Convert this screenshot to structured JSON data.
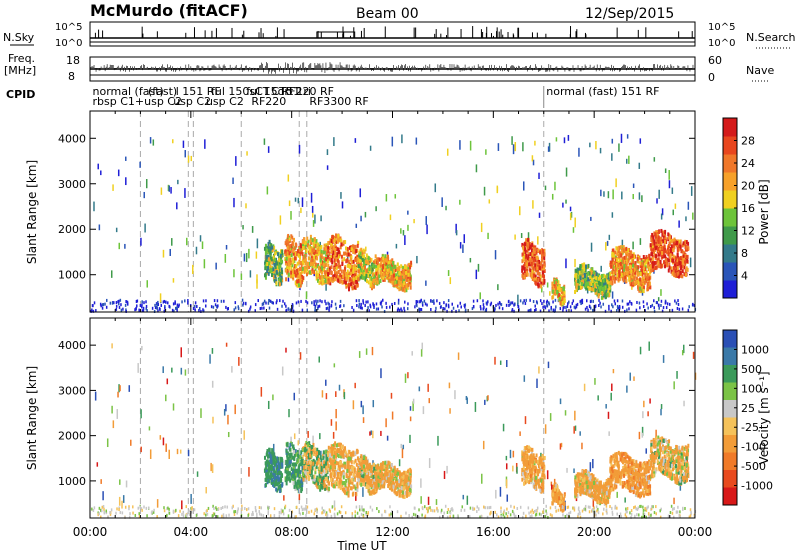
{
  "header": {
    "title": "McMurdo (fitACF)",
    "beam": "Beam 00",
    "date": "12/Sep/2015"
  },
  "top_panels": {
    "nsky_label": "N.Sky",
    "nsky_ticks": [
      "10^5",
      "10^0"
    ],
    "nsearch_label": "N.Search",
    "nsearch_ticks": [
      "10^5",
      "10^0"
    ],
    "freq_label_1": "Freq.",
    "freq_label_2": "[MHz]",
    "freq_ticks": [
      "18",
      "8"
    ],
    "nave_label": "Nave",
    "nave_ticks": [
      "60",
      "0"
    ],
    "cpid_label": "CPID",
    "cpid_texts": [
      {
        "text": "normal (fast) ",
        "row": 1,
        "t": 0.1
      },
      {
        "text": "rbsp C1+usp C2",
        "row": 2,
        "t": 0.1
      },
      {
        "text": "(fast) ",
        "row": 1,
        "t": 2.3
      },
      {
        "text": "usp C2",
        "row": 2,
        "t": 3.3
      },
      {
        "text": "l 151 RF",
        "row": 1,
        "t": 3.4
      },
      {
        "text": "ful 150sCT",
        "row": 1,
        "t": 4.8
      },
      {
        "text": "usp C2",
        "row": 2,
        "t": 4.6
      },
      {
        "text": "RF220 RF",
        "row": 1,
        "t": 7.6
      },
      {
        "text": "ful 15ort1",
        "row": 1,
        "t": 6.2
      },
      {
        "text": "CT5 1ri",
        "row": 1,
        "t": 7.2
      },
      {
        "text": "RF220",
        "row": 2,
        "t": 6.4
      },
      {
        "text": "RF3300 RF",
        "row": 2,
        "t": 8.7
      },
      {
        "text": "normal (fast) 151 RF",
        "row": 1,
        "t": 18.1
      }
    ]
  },
  "panels": [
    {
      "name": "power",
      "ylabel": "Slant Range [km]",
      "cbar_label": "Power [dB]"
    },
    {
      "name": "velocity",
      "ylabel": "Slant Range [km]",
      "cbar_label": "Velocity [m s⁻¹]"
    }
  ],
  "yticks": [
    "1000",
    "2000",
    "3000",
    "4000"
  ],
  "xticks": [
    "00:00",
    "04:00",
    "08:00",
    "12:00",
    "16:00",
    "20:00",
    "00:00"
  ],
  "xlabel": "Time UT",
  "power_colorbar": {
    "labels": [
      "4",
      "8",
      "12",
      "16",
      "20",
      "24",
      "28"
    ],
    "colors": [
      "#1f1fd6",
      "#2a55b8",
      "#337a8a",
      "#3f9a4a",
      "#6dc43a",
      "#f0d020",
      "#f7a12a",
      "#f0772a",
      "#e8461e",
      "#d41a1a"
    ]
  },
  "velocity_colorbar": {
    "labels": [
      "1000",
      "500",
      "100",
      "25",
      "-25",
      "-100",
      "-500",
      "-1000"
    ],
    "colors": [
      "#2a4fb5",
      "#3a79a8",
      "#3b9a5a",
      "#7bc346",
      "#c8c8c8",
      "#f5c25a",
      "#f29c38",
      "#f07a28",
      "#e84a1e",
      "#d81818"
    ]
  },
  "chart_data": {
    "type": "heatmap",
    "x_range_hours": [
      0,
      24
    ],
    "y_range_km": [
      180,
      4600
    ],
    "echo_regions": [
      {
        "t0": 6.9,
        "t1": 7.6,
        "r0": 900,
        "r1": 1650,
        "power": 14,
        "vel": 400
      },
      {
        "t0": 7.7,
        "t1": 8.4,
        "r0": 900,
        "r1": 1800,
        "power": 22,
        "vel": 300
      },
      {
        "t0": 8.4,
        "t1": 9.4,
        "r0": 950,
        "r1": 1800,
        "power": 20,
        "vel": 50
      },
      {
        "t0": 9.4,
        "t1": 10.6,
        "r0": 800,
        "r1": 1800,
        "power": 24,
        "vel": -200
      },
      {
        "t0": 10.6,
        "t1": 11.3,
        "r0": 850,
        "r1": 1500,
        "power": 18,
        "vel": -150
      },
      {
        "t0": 11.3,
        "t1": 12.7,
        "r0": 800,
        "r1": 1350,
        "power": 20,
        "vel": -200
      },
      {
        "t0": 17.1,
        "t1": 18.0,
        "r0": 900,
        "r1": 1700,
        "power": 26,
        "vel": -250
      },
      {
        "t0": 18.3,
        "t1": 18.8,
        "r0": 500,
        "r1": 850,
        "power": 20,
        "vel": -300
      },
      {
        "t0": 19.2,
        "t1": 20.6,
        "r0": 650,
        "r1": 1150,
        "power": 14,
        "vel": -200
      },
      {
        "t0": 20.6,
        "t1": 22.2,
        "r0": 800,
        "r1": 1550,
        "power": 22,
        "vel": -300
      },
      {
        "t0": 22.2,
        "t1": 23.7,
        "r0": 1100,
        "r1": 1900,
        "power": 26,
        "vel": -150
      }
    ]
  }
}
